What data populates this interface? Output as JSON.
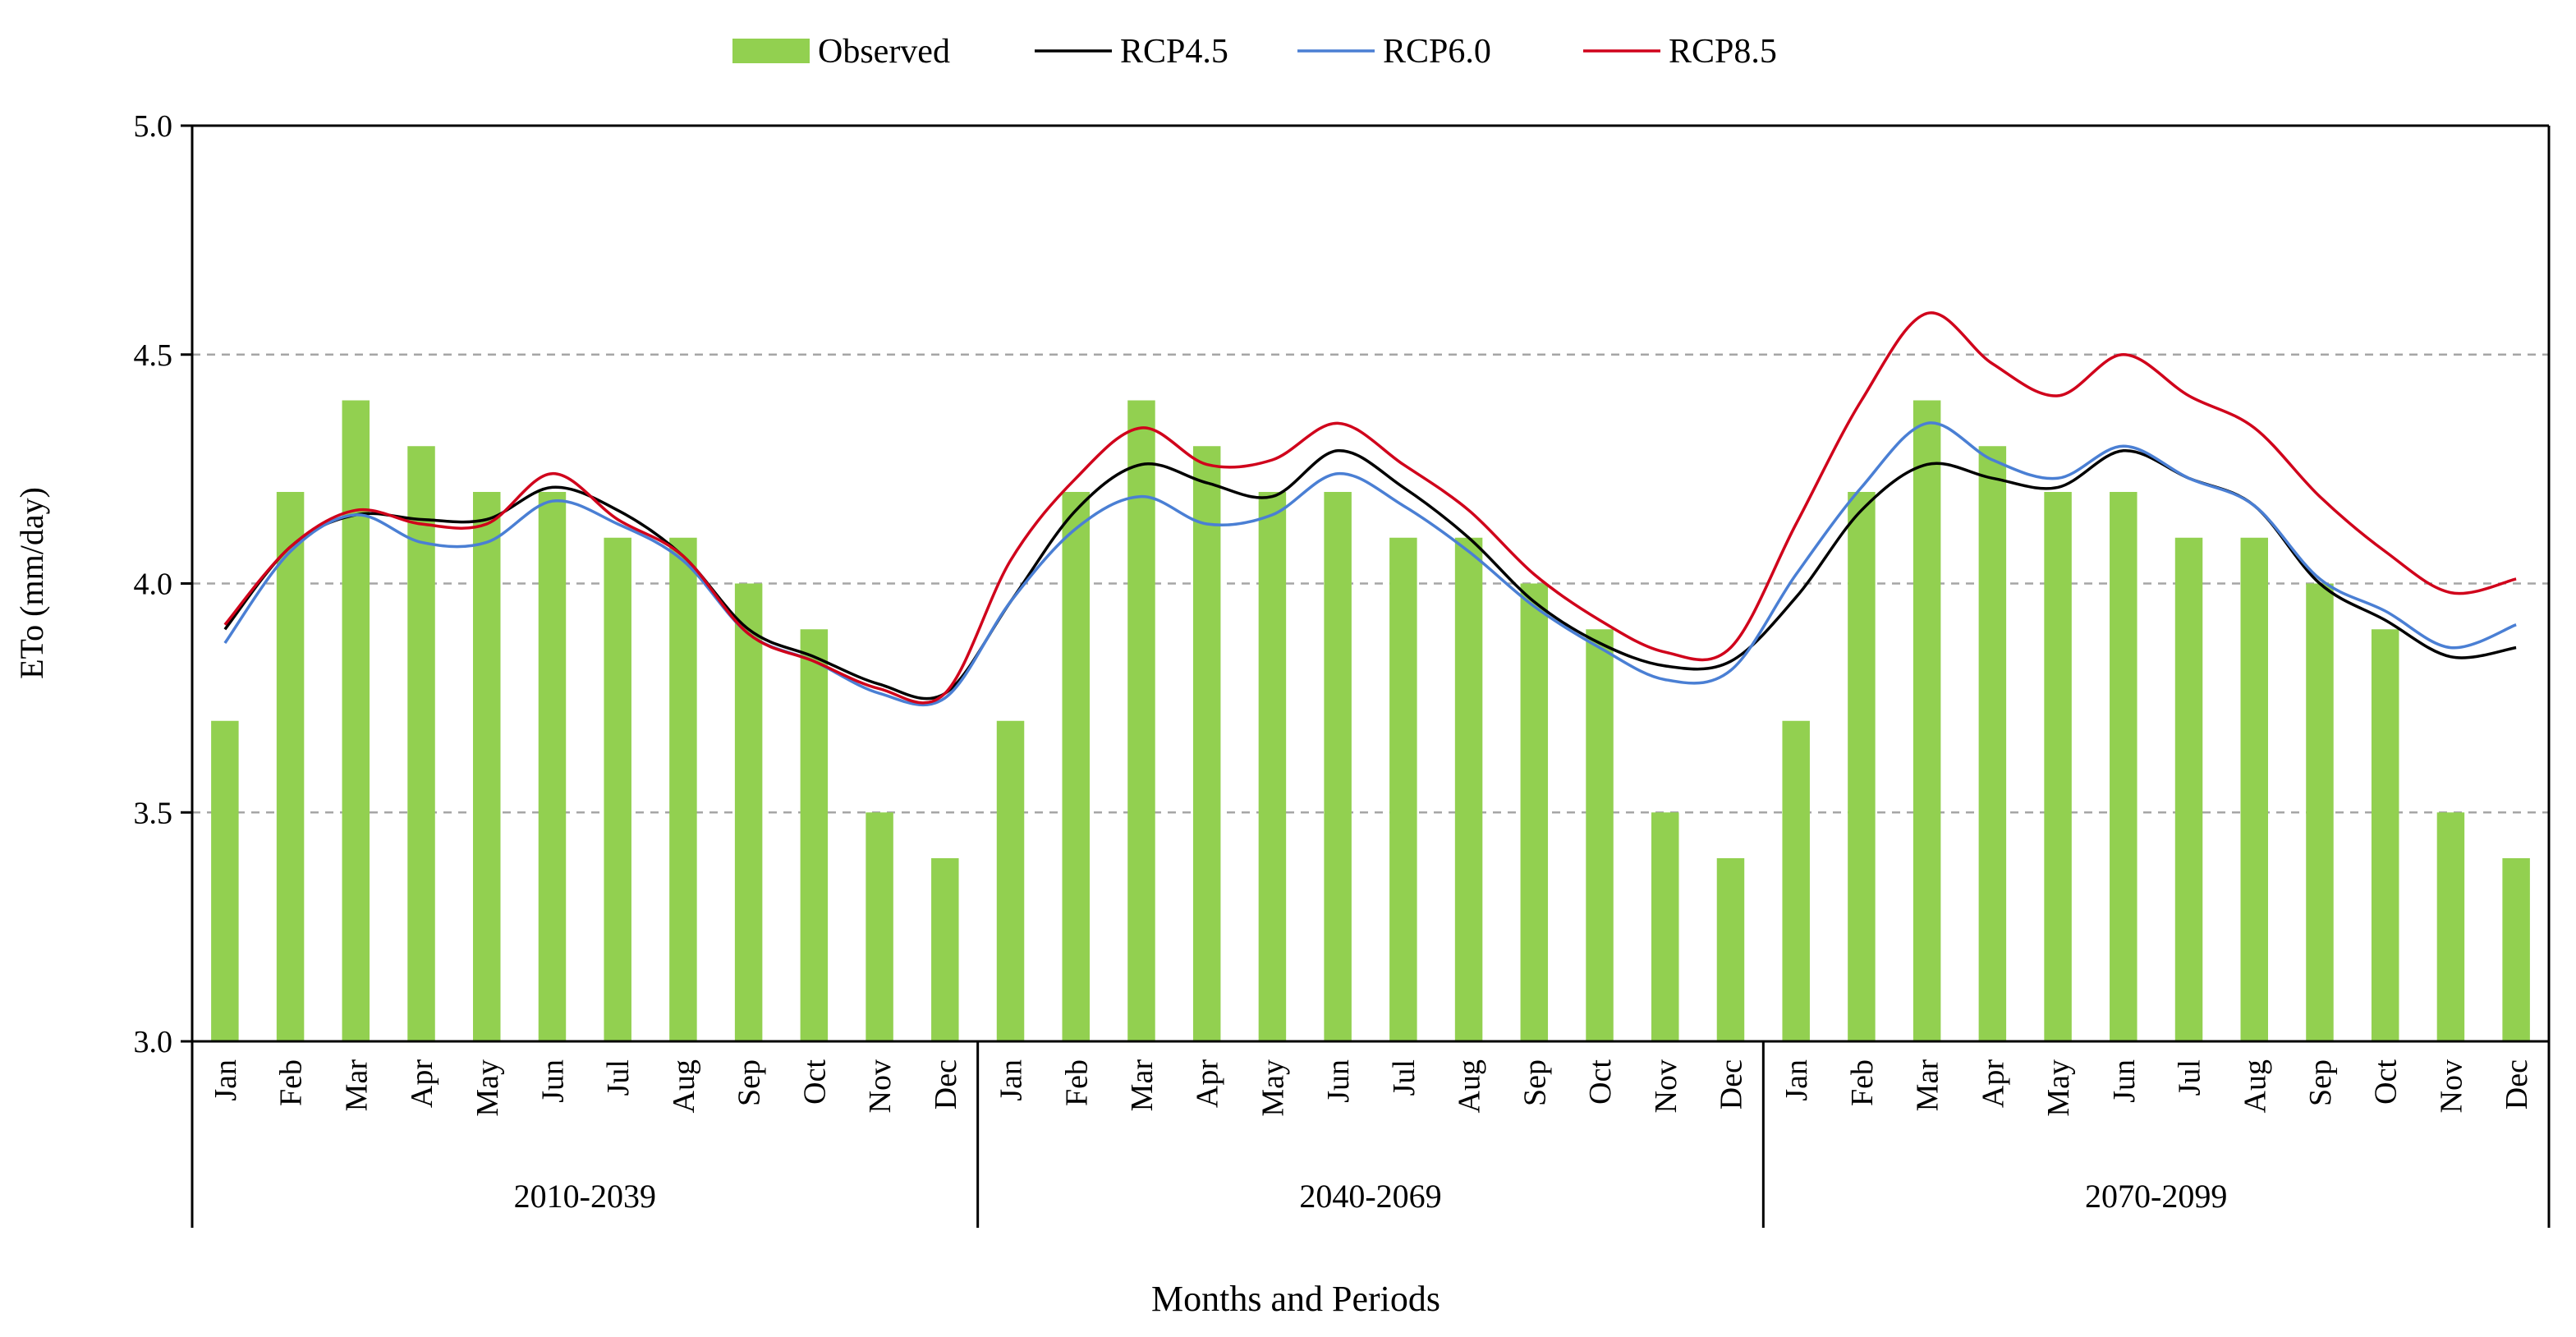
{
  "chart_data": {
    "type": "bar+line",
    "title": "",
    "xlabel": "Months and Periods",
    "ylabel": "ETo (mm/day)",
    "ylim": [
      3.0,
      5.0
    ],
    "yticks": [
      "3.0",
      "3.5",
      "4.0",
      "4.5",
      "5.0"
    ],
    "months": [
      "Jan",
      "Feb",
      "Mar",
      "Apr",
      "May",
      "Jun",
      "Jul",
      "Aug",
      "Sep",
      "Oct",
      "Nov",
      "Dec"
    ],
    "periods": [
      "2010-2039",
      "2040-2069",
      "2070-2099"
    ],
    "legend": {
      "position": "top-center",
      "entries": [
        "Observed",
        "RCP4.5",
        "RCP6.0",
        "RCP8.5"
      ]
    },
    "grid": {
      "horizontal_dashed": true,
      "levels": [
        3.5,
        4.0,
        4.5
      ]
    },
    "series": [
      {
        "name": "Observed",
        "kind": "bar",
        "color": "#92d050",
        "values": [
          3.7,
          4.2,
          4.4,
          4.3,
          4.2,
          4.2,
          4.1,
          4.1,
          4.0,
          3.9,
          3.5,
          3.4,
          3.7,
          4.2,
          4.4,
          4.3,
          4.2,
          4.2,
          4.1,
          4.1,
          4.0,
          3.9,
          3.5,
          3.4,
          3.7,
          4.2,
          4.4,
          4.3,
          4.2,
          4.2,
          4.1,
          4.1,
          4.0,
          3.9,
          3.5,
          3.4
        ]
      },
      {
        "name": "RCP4.5",
        "kind": "line",
        "color": "#000000",
        "values": [
          3.9,
          4.08,
          4.15,
          4.14,
          4.14,
          4.21,
          4.16,
          4.06,
          3.9,
          3.84,
          3.78,
          3.76,
          3.96,
          4.16,
          4.26,
          4.22,
          4.19,
          4.29,
          4.21,
          4.1,
          3.96,
          3.87,
          3.82,
          3.83,
          3.97,
          4.16,
          4.26,
          4.23,
          4.21,
          4.29,
          4.23,
          4.17,
          4.0,
          3.92,
          3.84,
          3.86
        ]
      },
      {
        "name": "RCP6.0",
        "kind": "line",
        "color": "#4a7fd4",
        "values": [
          3.87,
          4.07,
          4.15,
          4.09,
          4.09,
          4.18,
          4.13,
          4.05,
          3.89,
          3.83,
          3.76,
          3.75,
          3.96,
          4.12,
          4.19,
          4.13,
          4.15,
          4.24,
          4.17,
          4.07,
          3.95,
          3.86,
          3.79,
          3.81,
          4.02,
          4.21,
          4.35,
          4.27,
          4.23,
          4.3,
          4.23,
          4.17,
          4.01,
          3.94,
          3.86,
          3.91
        ]
      },
      {
        "name": "RCP8.5",
        "kind": "line",
        "color": "#d0021b",
        "values": [
          3.91,
          4.08,
          4.16,
          4.13,
          4.13,
          4.24,
          4.14,
          4.06,
          3.89,
          3.83,
          3.77,
          3.76,
          4.05,
          4.23,
          4.34,
          4.26,
          4.27,
          4.35,
          4.26,
          4.16,
          4.02,
          3.92,
          3.85,
          3.86,
          4.13,
          4.4,
          4.59,
          4.48,
          4.41,
          4.5,
          4.41,
          4.34,
          4.19,
          4.07,
          3.98,
          4.01
        ]
      }
    ]
  }
}
